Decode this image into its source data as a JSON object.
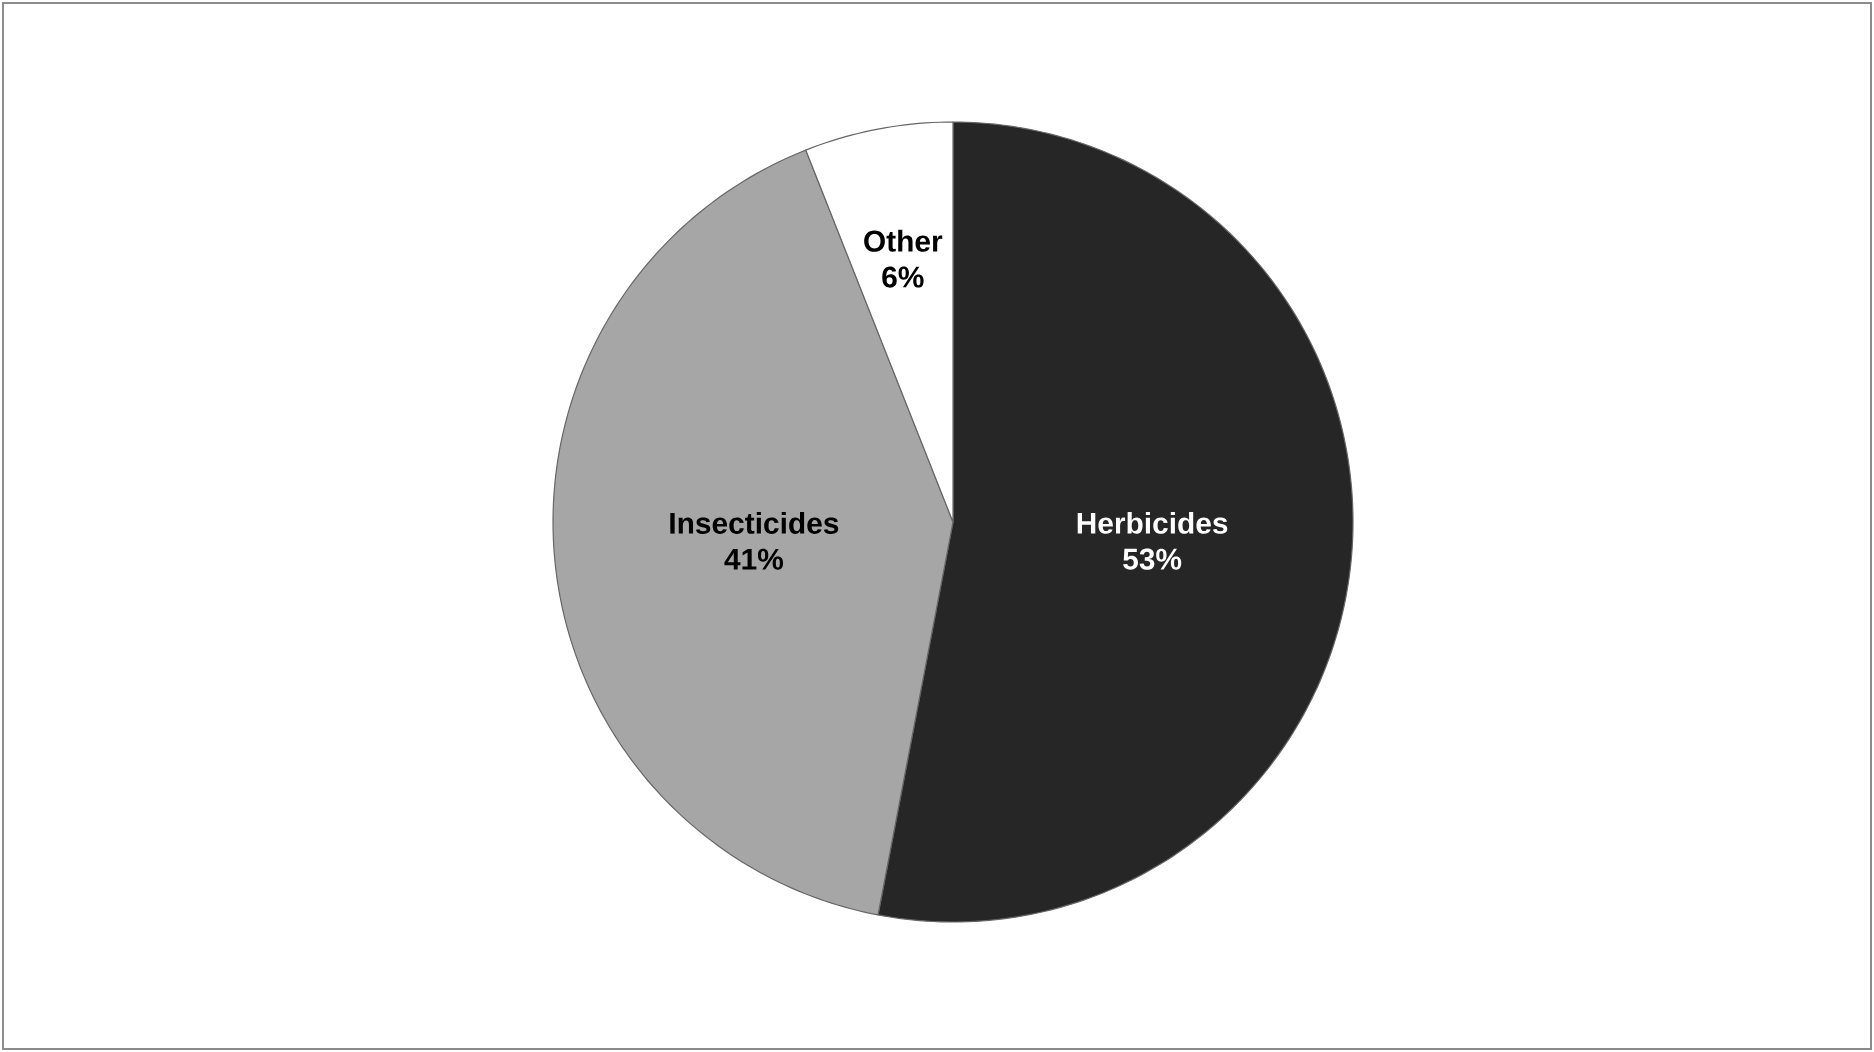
{
  "chart_data": {
    "type": "pie",
    "categories": [
      "Herbicides",
      "Insecticides",
      "Other"
    ],
    "values": [
      53,
      41,
      6
    ],
    "colors": [
      "#262626",
      "#a6a6a6",
      "#ffffff"
    ],
    "value_labels": [
      "53%",
      "41%",
      "6%"
    ]
  }
}
